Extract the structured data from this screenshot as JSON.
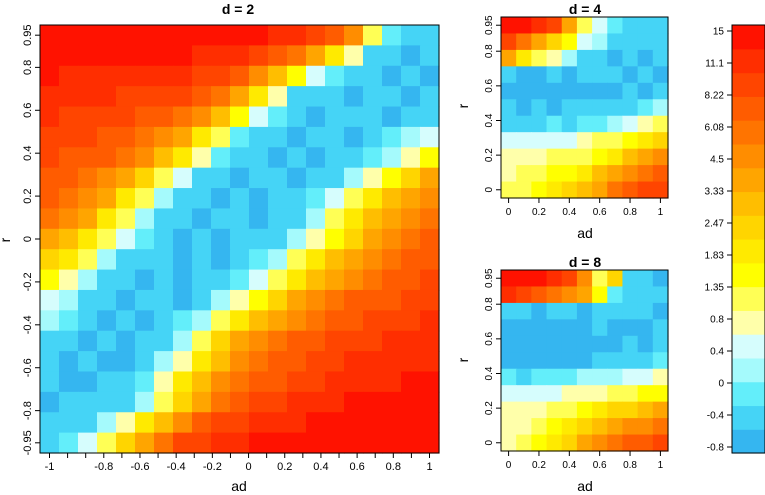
{
  "chart_data": [
    {
      "type": "heatmap",
      "title": "d = 2",
      "xlabel": "ad",
      "ylabel": "r",
      "xlim": [
        -1,
        1
      ],
      "ylim": [
        -0.95,
        0.95
      ],
      "x_ticks": [
        "-1",
        "",
        "",
        "-0.8",
        "",
        "-0.6",
        "",
        "-0.4",
        "",
        "-0.2",
        "",
        "0",
        "",
        "0.2",
        "",
        "0.4",
        "",
        "0.6",
        "",
        "0.8",
        "",
        "1"
      ],
      "y_ticks": [
        "-0.95",
        "-0.8",
        "-0.6",
        "-0.4",
        "-0.2",
        "0",
        "0.2",
        "0.4",
        "0.6",
        "0.8",
        "0.95"
      ],
      "y_tick_values": [
        -0.95,
        -0.8,
        -0.6,
        -0.4,
        -0.2,
        0,
        0.2,
        0.4,
        0.6,
        0.8,
        0.95
      ],
      "ad_values": [
        -1,
        -0.9,
        -0.8,
        -0.7,
        -0.6,
        -0.5,
        -0.4,
        -0.3,
        -0.2,
        -0.1,
        0,
        0.1,
        0.2,
        0.3,
        0.4,
        0.5,
        0.6,
        0.7,
        0.8,
        0.9,
        1
      ],
      "r_values": [
        0.95,
        0.9,
        0.8,
        0.7,
        0.6,
        0.5,
        0.4,
        0.3,
        0.2,
        0.1,
        0,
        -0.1,
        -0.2,
        -0.3,
        -0.4,
        -0.5,
        -0.6,
        -0.7,
        -0.8,
        -0.9,
        -0.95
      ],
      "values": [
        [
          14.5,
          14.5,
          14.5,
          14.5,
          14.5,
          14.5,
          14.5,
          14.5,
          14.5,
          14.0,
          13.5,
          13.0,
          12.0,
          11.0,
          9.0,
          7.0,
          4.5,
          1.2,
          -0.2,
          -0.5,
          -0.4
        ],
        [
          14.0,
          14.0,
          13.5,
          13.5,
          13.0,
          13.0,
          13.0,
          12.5,
          12.0,
          11.0,
          10.0,
          9.0,
          7.5,
          6.0,
          4.0,
          2.0,
          0.8,
          -0.3,
          -0.4,
          -0.6,
          -0.5
        ],
        [
          12.5,
          12.0,
          12.0,
          11.5,
          11.0,
          11.0,
          10.5,
          10.0,
          9.0,
          8.0,
          6.5,
          5.0,
          3.0,
          1.5,
          0.5,
          -0.2,
          -0.5,
          -0.4,
          -0.6,
          -0.5,
          -0.7
        ],
        [
          11.0,
          10.5,
          10.5,
          10.0,
          9.5,
          9.0,
          8.5,
          8.0,
          7.0,
          5.5,
          3.5,
          2.0,
          0.8,
          -0.3,
          -0.4,
          -0.5,
          -0.6,
          -0.5,
          -0.4,
          -0.6,
          -0.5
        ],
        [
          10.0,
          9.5,
          9.0,
          8.5,
          8.0,
          7.5,
          7.0,
          6.0,
          4.5,
          3.0,
          1.5,
          0.5,
          -0.2,
          -0.5,
          -0.6,
          -0.5,
          -0.4,
          -0.5,
          -0.6,
          -0.3,
          -0.4
        ],
        [
          9.0,
          8.5,
          8.0,
          7.5,
          7.0,
          6.0,
          5.0,
          3.5,
          2.0,
          1.0,
          -0.1,
          -0.4,
          -0.5,
          -0.6,
          -0.4,
          -0.5,
          -0.6,
          -0.4,
          -0.2,
          0.2,
          0.5
        ],
        [
          8.0,
          7.5,
          7.0,
          6.5,
          5.5,
          4.5,
          3.0,
          2.0,
          0.8,
          -0.2,
          -0.4,
          -0.5,
          -0.7,
          -0.5,
          -0.6,
          -0.4,
          -0.5,
          -0.2,
          0.3,
          0.8,
          1.5
        ],
        [
          7.5,
          7.0,
          6.0,
          5.0,
          3.5,
          2.5,
          1.2,
          0.4,
          -0.3,
          -0.5,
          -0.6,
          -0.5,
          -0.4,
          -0.6,
          -0.5,
          -0.3,
          0.1,
          0.8,
          1.5,
          2.5,
          3.5
        ],
        [
          6.5,
          6.0,
          5.0,
          3.5,
          2.0,
          1.0,
          0.2,
          -0.4,
          -0.5,
          -0.6,
          -0.4,
          -0.7,
          -0.5,
          -0.4,
          -0.2,
          0.4,
          1.0,
          2.0,
          3.0,
          4.0,
          5.0
        ],
        [
          5.5,
          4.5,
          3.5,
          2.0,
          1.0,
          0.3,
          -0.3,
          -0.5,
          -0.6,
          -0.4,
          -0.5,
          -0.6,
          -0.5,
          -0.3,
          0.3,
          1.0,
          1.8,
          2.8,
          4.0,
          5.0,
          6.0
        ],
        [
          4.0,
          3.0,
          2.0,
          1.2,
          0.4,
          -0.2,
          -0.5,
          -0.6,
          -0.4,
          -0.7,
          -0.5,
          -0.4,
          -0.3,
          0.2,
          0.8,
          1.6,
          2.5,
          3.5,
          4.5,
          5.5,
          6.5
        ],
        [
          2.5,
          1.8,
          1.0,
          0.3,
          -0.3,
          -0.5,
          -0.4,
          -0.6,
          -0.5,
          -0.6,
          -0.4,
          -0.2,
          0.3,
          1.0,
          1.8,
          2.8,
          3.8,
          4.8,
          5.8,
          6.5,
          7.5
        ],
        [
          1.5,
          0.8,
          0.2,
          -0.3,
          -0.5,
          -0.6,
          -0.5,
          -0.7,
          -0.5,
          -0.4,
          -0.1,
          0.5,
          1.2,
          2.0,
          3.0,
          4.0,
          5.0,
          6.0,
          7.0,
          7.5,
          8.0
        ],
        [
          0.6,
          0.2,
          -0.3,
          -0.5,
          -0.6,
          -0.4,
          -0.5,
          -0.6,
          -0.3,
          0.2,
          0.8,
          1.6,
          2.5,
          3.5,
          4.5,
          5.5,
          6.5,
          7.0,
          7.5,
          8.5,
          9.0
        ],
        [
          0.2,
          -0.2,
          -0.4,
          -0.6,
          -0.5,
          -0.7,
          -0.4,
          -0.2,
          0.3,
          1.0,
          2.0,
          3.0,
          4.0,
          5.0,
          6.0,
          7.0,
          7.5,
          8.5,
          9.0,
          9.5,
          10.0
        ],
        [
          -0.3,
          -0.5,
          -0.6,
          -0.5,
          -0.7,
          -0.5,
          -0.3,
          0.3,
          1.2,
          2.2,
          3.5,
          4.5,
          5.5,
          6.5,
          7.5,
          8.5,
          9.0,
          9.5,
          10.0,
          10.5,
          11.0
        ],
        [
          -0.5,
          -0.6,
          -0.4,
          -0.7,
          -0.6,
          -0.4,
          0.1,
          0.9,
          2.0,
          3.2,
          4.5,
          5.5,
          6.5,
          7.5,
          8.5,
          9.5,
          10.0,
          10.5,
          11.0,
          11.5,
          12.0
        ],
        [
          -0.4,
          -0.6,
          -0.7,
          -0.5,
          -0.4,
          0.0,
          0.8,
          1.8,
          3.0,
          4.2,
          5.5,
          6.5,
          7.5,
          8.5,
          9.5,
          10.5,
          11.0,
          11.5,
          12.0,
          12.5,
          13.0
        ],
        [
          -0.6,
          -0.5,
          -0.4,
          -0.5,
          -0.3,
          0.3,
          1.0,
          2.5,
          4.0,
          6.0,
          7.5,
          8.5,
          9.5,
          10.5,
          11.5,
          12.0,
          12.5,
          13.0,
          13.5,
          14.0,
          14.0
        ],
        [
          -0.5,
          -0.4,
          -0.3,
          0.2,
          0.9,
          1.8,
          3.0,
          5.0,
          7.0,
          8.5,
          9.5,
          10.5,
          11.5,
          12.0,
          12.5,
          13.0,
          13.5,
          14.0,
          14.0,
          14.5,
          14.5
        ],
        [
          -0.3,
          -0.2,
          0.4,
          1.2,
          2.5,
          4.0,
          6.0,
          8.0,
          9.5,
          10.5,
          11.5,
          12.5,
          13.0,
          13.5,
          14.0,
          14.0,
          14.5,
          14.5,
          14.5,
          15.0,
          15.0
        ]
      ]
    },
    {
      "type": "heatmap",
      "title": "d = 4",
      "xlabel": "ad",
      "ylabel": "r",
      "xlim": [
        0,
        1
      ],
      "ylim": [
        0,
        0.95
      ],
      "x_ticks": [
        "0",
        "0.2",
        "0.4",
        "0.6",
        "0.8",
        "1"
      ],
      "x_tick_values": [
        0,
        0.2,
        0.4,
        0.6,
        0.8,
        1
      ],
      "y_ticks": [
        "0",
        "0.2",
        "0.4",
        "0.6",
        "0.8",
        "0.95"
      ],
      "y_tick_values": [
        0,
        0.2,
        0.4,
        0.6,
        0.8,
        0.95
      ],
      "ad_values": [
        0,
        0.1,
        0.2,
        0.3,
        0.4,
        0.5,
        0.6,
        0.7,
        0.8,
        0.9,
        1
      ],
      "r_values": [
        0.95,
        0.9,
        0.8,
        0.7,
        0.6,
        0.5,
        0.4,
        0.3,
        0.2,
        0.1,
        0
      ],
      "values": [
        [
          13.0,
          12.5,
          11.0,
          8.0,
          3.5,
          1.0,
          0.4,
          -0.2,
          -0.4,
          -0.3,
          -0.4
        ],
        [
          9.0,
          6.0,
          4.0,
          2.5,
          1.5,
          0.5,
          0.1,
          -0.3,
          -0.5,
          -0.4,
          -0.5
        ],
        [
          3.5,
          2.0,
          1.2,
          0.8,
          0.3,
          -0.3,
          -0.5,
          -0.6,
          -0.5,
          -0.6,
          -0.5
        ],
        [
          -0.5,
          -0.6,
          -0.6,
          -0.5,
          -0.6,
          -0.5,
          -0.4,
          -0.5,
          -0.6,
          -0.5,
          -0.6
        ],
        [
          -0.8,
          -0.8,
          -0.8,
          -0.8,
          -0.8,
          -0.6,
          -0.6,
          -0.6,
          -0.5,
          -0.6,
          -0.5
        ],
        [
          -0.5,
          -0.6,
          -0.5,
          -0.6,
          -0.5,
          -0.4,
          -0.5,
          -0.4,
          -0.3,
          -0.2,
          0.3
        ],
        [
          -0.3,
          -0.4,
          -0.3,
          -0.2,
          -0.3,
          -0.2,
          0.0,
          0.2,
          0.5,
          0.8,
          1.2
        ],
        [
          0.4,
          0.4,
          0.5,
          0.4,
          0.6,
          0.8,
          1.0,
          1.2,
          1.5,
          2.0,
          2.5
        ],
        [
          0.8,
          0.8,
          0.9,
          1.0,
          1.0,
          1.2,
          1.5,
          2.0,
          2.8,
          3.5,
          4.5
        ],
        [
          0.9,
          1.0,
          1.2,
          1.4,
          1.6,
          2.0,
          2.8,
          3.8,
          5.0,
          6.0,
          7.0
        ],
        [
          1.0,
          1.2,
          1.5,
          1.8,
          2.2,
          3.0,
          4.0,
          5.5,
          7.0,
          8.0,
          9.0
        ]
      ]
    },
    {
      "type": "heatmap",
      "title": "d = 8",
      "xlabel": "ad",
      "ylabel": "r",
      "xlim": [
        0,
        1
      ],
      "ylim": [
        0,
        0.95
      ],
      "x_ticks": [
        "0",
        "0.2",
        "0.4",
        "0.6",
        "0.8",
        "1"
      ],
      "x_tick_values": [
        0,
        0.2,
        0.4,
        0.6,
        0.8,
        1
      ],
      "y_ticks": [
        "0",
        "0.2",
        "0.4",
        "0.6",
        "0.8",
        "0.95"
      ],
      "y_tick_values": [
        0,
        0.2,
        0.4,
        0.6,
        0.8,
        0.95
      ],
      "ad_values": [
        0,
        0.1,
        0.2,
        0.3,
        0.4,
        0.5,
        0.6,
        0.7,
        0.8,
        0.9,
        1
      ],
      "r_values": [
        0.95,
        0.9,
        0.8,
        0.7,
        0.6,
        0.5,
        0.4,
        0.3,
        0.2,
        0.1,
        0
      ],
      "values": [
        [
          14.0,
          13.5,
          12.5,
          11.0,
          8.5,
          5.0,
          1.0,
          2.5,
          -0.4,
          -0.5,
          -0.6
        ],
        [
          10.5,
          9.0,
          7.5,
          6.0,
          4.5,
          3.5,
          1.5,
          -0.2,
          -0.4,
          -0.5,
          -0.4
        ],
        [
          -0.4,
          -0.5,
          -0.6,
          -0.5,
          -0.5,
          -0.6,
          -0.5,
          -0.4,
          -0.5,
          -0.5,
          -0.6
        ],
        [
          -0.6,
          -0.6,
          -0.6,
          -0.6,
          -0.6,
          -0.6,
          -0.5,
          -0.6,
          -0.6,
          -0.6,
          -0.5
        ],
        [
          -0.8,
          -0.8,
          -0.8,
          -0.9,
          -0.9,
          -0.8,
          -0.8,
          -0.6,
          -0.5,
          -0.6,
          -0.5
        ],
        [
          -0.7,
          -0.7,
          -0.7,
          -0.6,
          -0.6,
          -0.6,
          -0.5,
          -0.5,
          -0.4,
          -0.3,
          -0.2
        ],
        [
          -0.2,
          -0.3,
          -0.2,
          -0.1,
          0.0,
          0.1,
          0.2,
          0.3,
          0.4,
          0.5,
          0.8
        ],
        [
          0.5,
          0.5,
          0.6,
          0.6,
          0.7,
          0.8,
          0.9,
          1.0,
          1.2,
          1.4,
          1.6
        ],
        [
          0.7,
          0.8,
          0.9,
          1.0,
          1.2,
          1.4,
          1.8,
          2.2,
          2.6,
          3.0,
          3.5
        ],
        [
          0.8,
          0.9,
          1.1,
          1.4,
          1.8,
          2.4,
          3.0,
          3.8,
          4.5,
          5.0,
          5.5
        ],
        [
          0.9,
          1.2,
          1.6,
          2.0,
          2.6,
          3.5,
          4.5,
          5.5,
          6.5,
          7.5,
          8.5
        ]
      ]
    },
    {
      "type": "colorbar",
      "tick_labels": [
        "15",
        "11.1",
        "8.22",
        "6.08",
        "4.5",
        "3.33",
        "2.47",
        "1.83",
        "1.35",
        "0.8",
        "0.4",
        "0",
        "-0.4",
        "-0.8"
      ],
      "tick_values": [
        15,
        11.1,
        8.22,
        6.08,
        4.5,
        3.33,
        2.47,
        1.83,
        1.35,
        0.8,
        0.4,
        0,
        -0.4,
        -0.8
      ],
      "range": [
        -1,
        15
      ],
      "colors": [
        "#35b6f0",
        "#45d4f6",
        "#63eefa",
        "#a5fafc",
        "#d6fdfd",
        "#ffffaa",
        "#ffff55",
        "#ffff00",
        "#ffea00",
        "#ffd500",
        "#ffbe00",
        "#ffa500",
        "#ff8d00",
        "#ff7400",
        "#ff5c00",
        "#ff4500",
        "#ff2e00",
        "#ff1200"
      ]
    }
  ]
}
